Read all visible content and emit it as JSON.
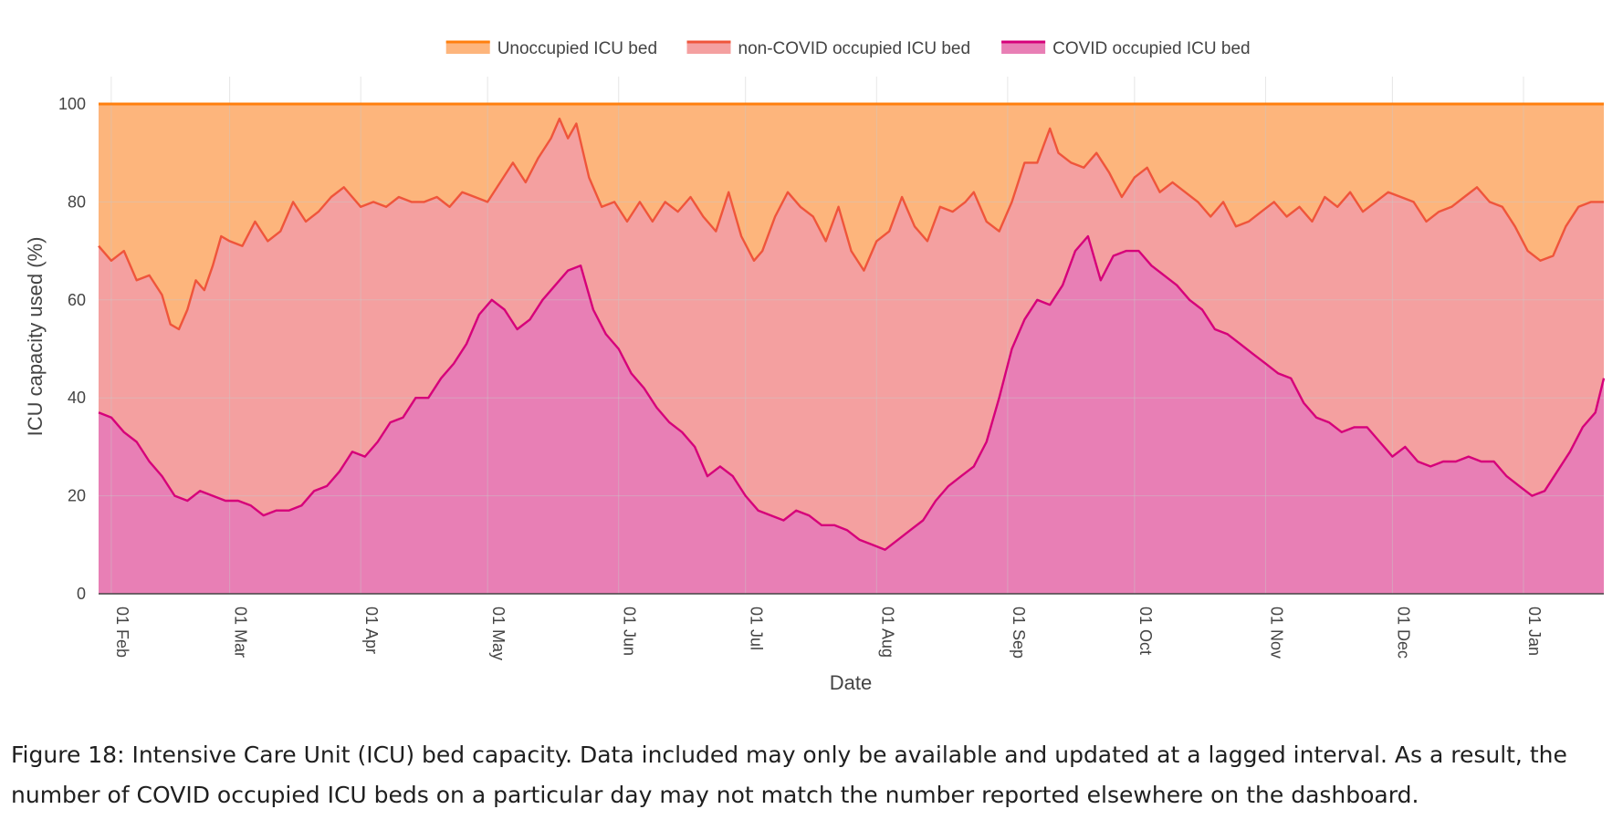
{
  "chart_data": {
    "type": "area",
    "title": "",
    "xlabel": "Date",
    "ylabel": "ICU capacity used (%)",
    "ylim": [
      0,
      100
    ],
    "y_ticks": [
      0,
      20,
      40,
      60,
      80,
      100
    ],
    "x_range": [
      "2021-01-29",
      "2022-01-20"
    ],
    "x_ticks": [
      {
        "date": "2021-02-01",
        "label": "01 Feb"
      },
      {
        "date": "2021-03-01",
        "label": "01 Mar"
      },
      {
        "date": "2021-04-01",
        "label": "01 Apr"
      },
      {
        "date": "2021-05-01",
        "label": "01 May"
      },
      {
        "date": "2021-06-01",
        "label": "01 Jun"
      },
      {
        "date": "2021-07-01",
        "label": "01 Jul"
      },
      {
        "date": "2021-08-01",
        "label": "01 Aug"
      },
      {
        "date": "2021-09-01",
        "label": "01 Sep"
      },
      {
        "date": "2021-10-01",
        "label": "01 Oct"
      },
      {
        "date": "2021-11-01",
        "label": "01 Nov"
      },
      {
        "date": "2021-12-01",
        "label": "01 Dec"
      },
      {
        "date": "2022-01-01",
        "label": "01 Jan"
      }
    ],
    "grid": true,
    "legend_position": "top-center",
    "series": [
      {
        "name": "Unoccupied ICU bed",
        "color": "#ff7f0e",
        "fill": "#fdb57c",
        "points": [
          [
            "2021-01-29",
            100
          ],
          [
            "2022-01-20",
            100
          ]
        ]
      },
      {
        "name": "non-COVID occupied ICU bed",
        "color": "#ef553b",
        "fill": "#f4a0a0",
        "points": [
          [
            "2021-01-29",
            71
          ],
          [
            "2021-02-01",
            68
          ],
          [
            "2021-02-04",
            70
          ],
          [
            "2021-02-07",
            64
          ],
          [
            "2021-02-10",
            65
          ],
          [
            "2021-02-13",
            61
          ],
          [
            "2021-02-15",
            55
          ],
          [
            "2021-02-17",
            54
          ],
          [
            "2021-02-19",
            58
          ],
          [
            "2021-02-21",
            64
          ],
          [
            "2021-02-23",
            62
          ],
          [
            "2021-02-25",
            67
          ],
          [
            "2021-02-27",
            73
          ],
          [
            "2021-03-01",
            72
          ],
          [
            "2021-03-04",
            71
          ],
          [
            "2021-03-07",
            76
          ],
          [
            "2021-03-10",
            72
          ],
          [
            "2021-03-13",
            74
          ],
          [
            "2021-03-16",
            80
          ],
          [
            "2021-03-19",
            76
          ],
          [
            "2021-03-22",
            78
          ],
          [
            "2021-03-25",
            81
          ],
          [
            "2021-03-28",
            83
          ],
          [
            "2021-04-01",
            79
          ],
          [
            "2021-04-04",
            80
          ],
          [
            "2021-04-07",
            79
          ],
          [
            "2021-04-10",
            81
          ],
          [
            "2021-04-13",
            80
          ],
          [
            "2021-04-16",
            80
          ],
          [
            "2021-04-19",
            81
          ],
          [
            "2021-04-22",
            79
          ],
          [
            "2021-04-25",
            82
          ],
          [
            "2021-04-28",
            81
          ],
          [
            "2021-05-01",
            80
          ],
          [
            "2021-05-04",
            84
          ],
          [
            "2021-05-07",
            88
          ],
          [
            "2021-05-10",
            84
          ],
          [
            "2021-05-13",
            89
          ],
          [
            "2021-05-16",
            93
          ],
          [
            "2021-05-18",
            97
          ],
          [
            "2021-05-20",
            93
          ],
          [
            "2021-05-22",
            96
          ],
          [
            "2021-05-25",
            85
          ],
          [
            "2021-05-28",
            79
          ],
          [
            "2021-05-31",
            80
          ],
          [
            "2021-06-03",
            76
          ],
          [
            "2021-06-06",
            80
          ],
          [
            "2021-06-09",
            76
          ],
          [
            "2021-06-12",
            80
          ],
          [
            "2021-06-15",
            78
          ],
          [
            "2021-06-18",
            81
          ],
          [
            "2021-06-21",
            77
          ],
          [
            "2021-06-24",
            74
          ],
          [
            "2021-06-27",
            82
          ],
          [
            "2021-06-30",
            73
          ],
          [
            "2021-07-03",
            68
          ],
          [
            "2021-07-05",
            70
          ],
          [
            "2021-07-08",
            77
          ],
          [
            "2021-07-11",
            82
          ],
          [
            "2021-07-14",
            79
          ],
          [
            "2021-07-17",
            77
          ],
          [
            "2021-07-20",
            72
          ],
          [
            "2021-07-23",
            79
          ],
          [
            "2021-07-26",
            70
          ],
          [
            "2021-07-29",
            66
          ],
          [
            "2021-08-01",
            72
          ],
          [
            "2021-08-04",
            74
          ],
          [
            "2021-08-07",
            81
          ],
          [
            "2021-08-10",
            75
          ],
          [
            "2021-08-13",
            72
          ],
          [
            "2021-08-16",
            79
          ],
          [
            "2021-08-19",
            78
          ],
          [
            "2021-08-22",
            80
          ],
          [
            "2021-08-24",
            82
          ],
          [
            "2021-08-27",
            76
          ],
          [
            "2021-08-30",
            74
          ],
          [
            "2021-09-02",
            80
          ],
          [
            "2021-09-05",
            88
          ],
          [
            "2021-09-08",
            88
          ],
          [
            "2021-09-11",
            95
          ],
          [
            "2021-09-13",
            90
          ],
          [
            "2021-09-16",
            88
          ],
          [
            "2021-09-19",
            87
          ],
          [
            "2021-09-22",
            90
          ],
          [
            "2021-09-25",
            86
          ],
          [
            "2021-09-28",
            81
          ],
          [
            "2021-10-01",
            85
          ],
          [
            "2021-10-04",
            87
          ],
          [
            "2021-10-07",
            82
          ],
          [
            "2021-10-10",
            84
          ],
          [
            "2021-10-13",
            82
          ],
          [
            "2021-10-16",
            80
          ],
          [
            "2021-10-19",
            77
          ],
          [
            "2021-10-22",
            80
          ],
          [
            "2021-10-25",
            75
          ],
          [
            "2021-10-28",
            76
          ],
          [
            "2021-10-31",
            78
          ],
          [
            "2021-11-03",
            80
          ],
          [
            "2021-11-06",
            77
          ],
          [
            "2021-11-09",
            79
          ],
          [
            "2021-11-12",
            76
          ],
          [
            "2021-11-15",
            81
          ],
          [
            "2021-11-18",
            79
          ],
          [
            "2021-11-21",
            82
          ],
          [
            "2021-11-24",
            78
          ],
          [
            "2021-11-27",
            80
          ],
          [
            "2021-11-30",
            82
          ],
          [
            "2021-12-03",
            81
          ],
          [
            "2021-12-06",
            80
          ],
          [
            "2021-12-09",
            76
          ],
          [
            "2021-12-12",
            78
          ],
          [
            "2021-12-15",
            79
          ],
          [
            "2021-12-18",
            81
          ],
          [
            "2021-12-21",
            83
          ],
          [
            "2021-12-24",
            80
          ],
          [
            "2021-12-27",
            79
          ],
          [
            "2021-12-30",
            75
          ],
          [
            "2022-01-02",
            70
          ],
          [
            "2022-01-05",
            68
          ],
          [
            "2022-01-08",
            69
          ],
          [
            "2022-01-11",
            75
          ],
          [
            "2022-01-14",
            79
          ],
          [
            "2022-01-17",
            80
          ],
          [
            "2022-01-20",
            80
          ]
        ]
      },
      {
        "name": "COVID occupied ICU bed",
        "color": "#d6007a",
        "fill": "#e87fb5",
        "points": [
          [
            "2021-01-29",
            37
          ],
          [
            "2021-02-01",
            36
          ],
          [
            "2021-02-04",
            33
          ],
          [
            "2021-02-07",
            31
          ],
          [
            "2021-02-10",
            27
          ],
          [
            "2021-02-13",
            24
          ],
          [
            "2021-02-16",
            20
          ],
          [
            "2021-02-19",
            19
          ],
          [
            "2021-02-22",
            21
          ],
          [
            "2021-02-25",
            20
          ],
          [
            "2021-02-28",
            19
          ],
          [
            "2021-03-03",
            19
          ],
          [
            "2021-03-06",
            18
          ],
          [
            "2021-03-09",
            16
          ],
          [
            "2021-03-12",
            17
          ],
          [
            "2021-03-15",
            17
          ],
          [
            "2021-03-18",
            18
          ],
          [
            "2021-03-21",
            21
          ],
          [
            "2021-03-24",
            22
          ],
          [
            "2021-03-27",
            25
          ],
          [
            "2021-03-30",
            29
          ],
          [
            "2021-04-02",
            28
          ],
          [
            "2021-04-05",
            31
          ],
          [
            "2021-04-08",
            35
          ],
          [
            "2021-04-11",
            36
          ],
          [
            "2021-04-14",
            40
          ],
          [
            "2021-04-17",
            40
          ],
          [
            "2021-04-20",
            44
          ],
          [
            "2021-04-23",
            47
          ],
          [
            "2021-04-26",
            51
          ],
          [
            "2021-04-29",
            57
          ],
          [
            "2021-05-02",
            60
          ],
          [
            "2021-05-05",
            58
          ],
          [
            "2021-05-08",
            54
          ],
          [
            "2021-05-11",
            56
          ],
          [
            "2021-05-14",
            60
          ],
          [
            "2021-05-17",
            63
          ],
          [
            "2021-05-20",
            66
          ],
          [
            "2021-05-23",
            67
          ],
          [
            "2021-05-26",
            58
          ],
          [
            "2021-05-29",
            53
          ],
          [
            "2021-06-01",
            50
          ],
          [
            "2021-06-04",
            45
          ],
          [
            "2021-06-07",
            42
          ],
          [
            "2021-06-10",
            38
          ],
          [
            "2021-06-13",
            35
          ],
          [
            "2021-06-16",
            33
          ],
          [
            "2021-06-19",
            30
          ],
          [
            "2021-06-22",
            24
          ],
          [
            "2021-06-25",
            26
          ],
          [
            "2021-06-28",
            24
          ],
          [
            "2021-07-01",
            20
          ],
          [
            "2021-07-04",
            17
          ],
          [
            "2021-07-07",
            16
          ],
          [
            "2021-07-10",
            15
          ],
          [
            "2021-07-13",
            17
          ],
          [
            "2021-07-16",
            16
          ],
          [
            "2021-07-19",
            14
          ],
          [
            "2021-07-22",
            14
          ],
          [
            "2021-07-25",
            13
          ],
          [
            "2021-07-28",
            11
          ],
          [
            "2021-07-31",
            10
          ],
          [
            "2021-08-03",
            9
          ],
          [
            "2021-08-06",
            11
          ],
          [
            "2021-08-09",
            13
          ],
          [
            "2021-08-12",
            15
          ],
          [
            "2021-08-15",
            19
          ],
          [
            "2021-08-18",
            22
          ],
          [
            "2021-08-21",
            24
          ],
          [
            "2021-08-24",
            26
          ],
          [
            "2021-08-27",
            31
          ],
          [
            "2021-08-30",
            40
          ],
          [
            "2021-09-02",
            50
          ],
          [
            "2021-09-05",
            56
          ],
          [
            "2021-09-08",
            60
          ],
          [
            "2021-09-11",
            59
          ],
          [
            "2021-09-14",
            63
          ],
          [
            "2021-09-17",
            70
          ],
          [
            "2021-09-20",
            73
          ],
          [
            "2021-09-23",
            64
          ],
          [
            "2021-09-26",
            69
          ],
          [
            "2021-09-29",
            70
          ],
          [
            "2021-10-02",
            70
          ],
          [
            "2021-10-05",
            67
          ],
          [
            "2021-10-08",
            65
          ],
          [
            "2021-10-11",
            63
          ],
          [
            "2021-10-14",
            60
          ],
          [
            "2021-10-17",
            58
          ],
          [
            "2021-10-20",
            54
          ],
          [
            "2021-10-23",
            53
          ],
          [
            "2021-10-26",
            51
          ],
          [
            "2021-10-29",
            49
          ],
          [
            "2021-11-01",
            47
          ],
          [
            "2021-11-04",
            45
          ],
          [
            "2021-11-07",
            44
          ],
          [
            "2021-11-10",
            39
          ],
          [
            "2021-11-13",
            36
          ],
          [
            "2021-11-16",
            35
          ],
          [
            "2021-11-19",
            33
          ],
          [
            "2021-11-22",
            34
          ],
          [
            "2021-11-25",
            34
          ],
          [
            "2021-11-28",
            31
          ],
          [
            "2021-12-01",
            28
          ],
          [
            "2021-12-04",
            30
          ],
          [
            "2021-12-07",
            27
          ],
          [
            "2021-12-10",
            26
          ],
          [
            "2021-12-13",
            27
          ],
          [
            "2021-12-16",
            27
          ],
          [
            "2021-12-19",
            28
          ],
          [
            "2021-12-22",
            27
          ],
          [
            "2021-12-25",
            27
          ],
          [
            "2021-12-28",
            24
          ],
          [
            "2021-12-31",
            22
          ],
          [
            "2022-01-03",
            20
          ],
          [
            "2022-01-06",
            21
          ],
          [
            "2022-01-09",
            25
          ],
          [
            "2022-01-12",
            29
          ],
          [
            "2022-01-15",
            34
          ],
          [
            "2022-01-18",
            37
          ],
          [
            "2022-01-20",
            44
          ]
        ]
      }
    ]
  },
  "caption": "Figure 18: Intensive Care Unit (ICU) bed capacity. Data included may only be available and updated at a lagged interval. As a result, the number of COVID occupied ICU beds on a particular day may not match the number reported elsewhere on the dashboard."
}
